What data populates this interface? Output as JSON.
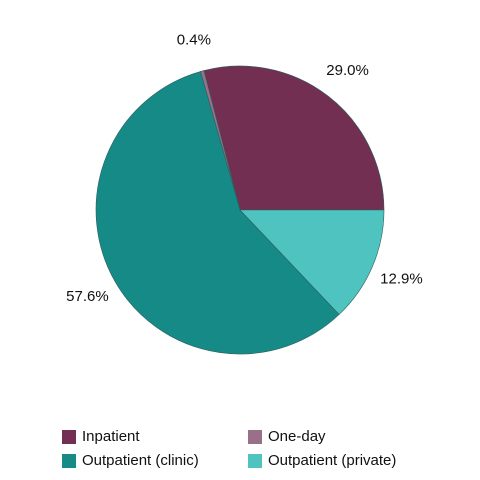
{
  "chart_data": {
    "type": "pie",
    "categories": [
      "Inpatient",
      "One-day",
      "Outpatient (clinic)",
      "Outpatient (private)"
    ],
    "values": [
      29.0,
      0.4,
      57.6,
      12.9
    ],
    "value_labels": [
      "29.0%",
      "0.4%",
      "57.6%",
      "12.9%"
    ],
    "colors": [
      "#722f52",
      "#9a7088",
      "#158a87",
      "#4fc3bf"
    ],
    "legend": "bottom"
  }
}
